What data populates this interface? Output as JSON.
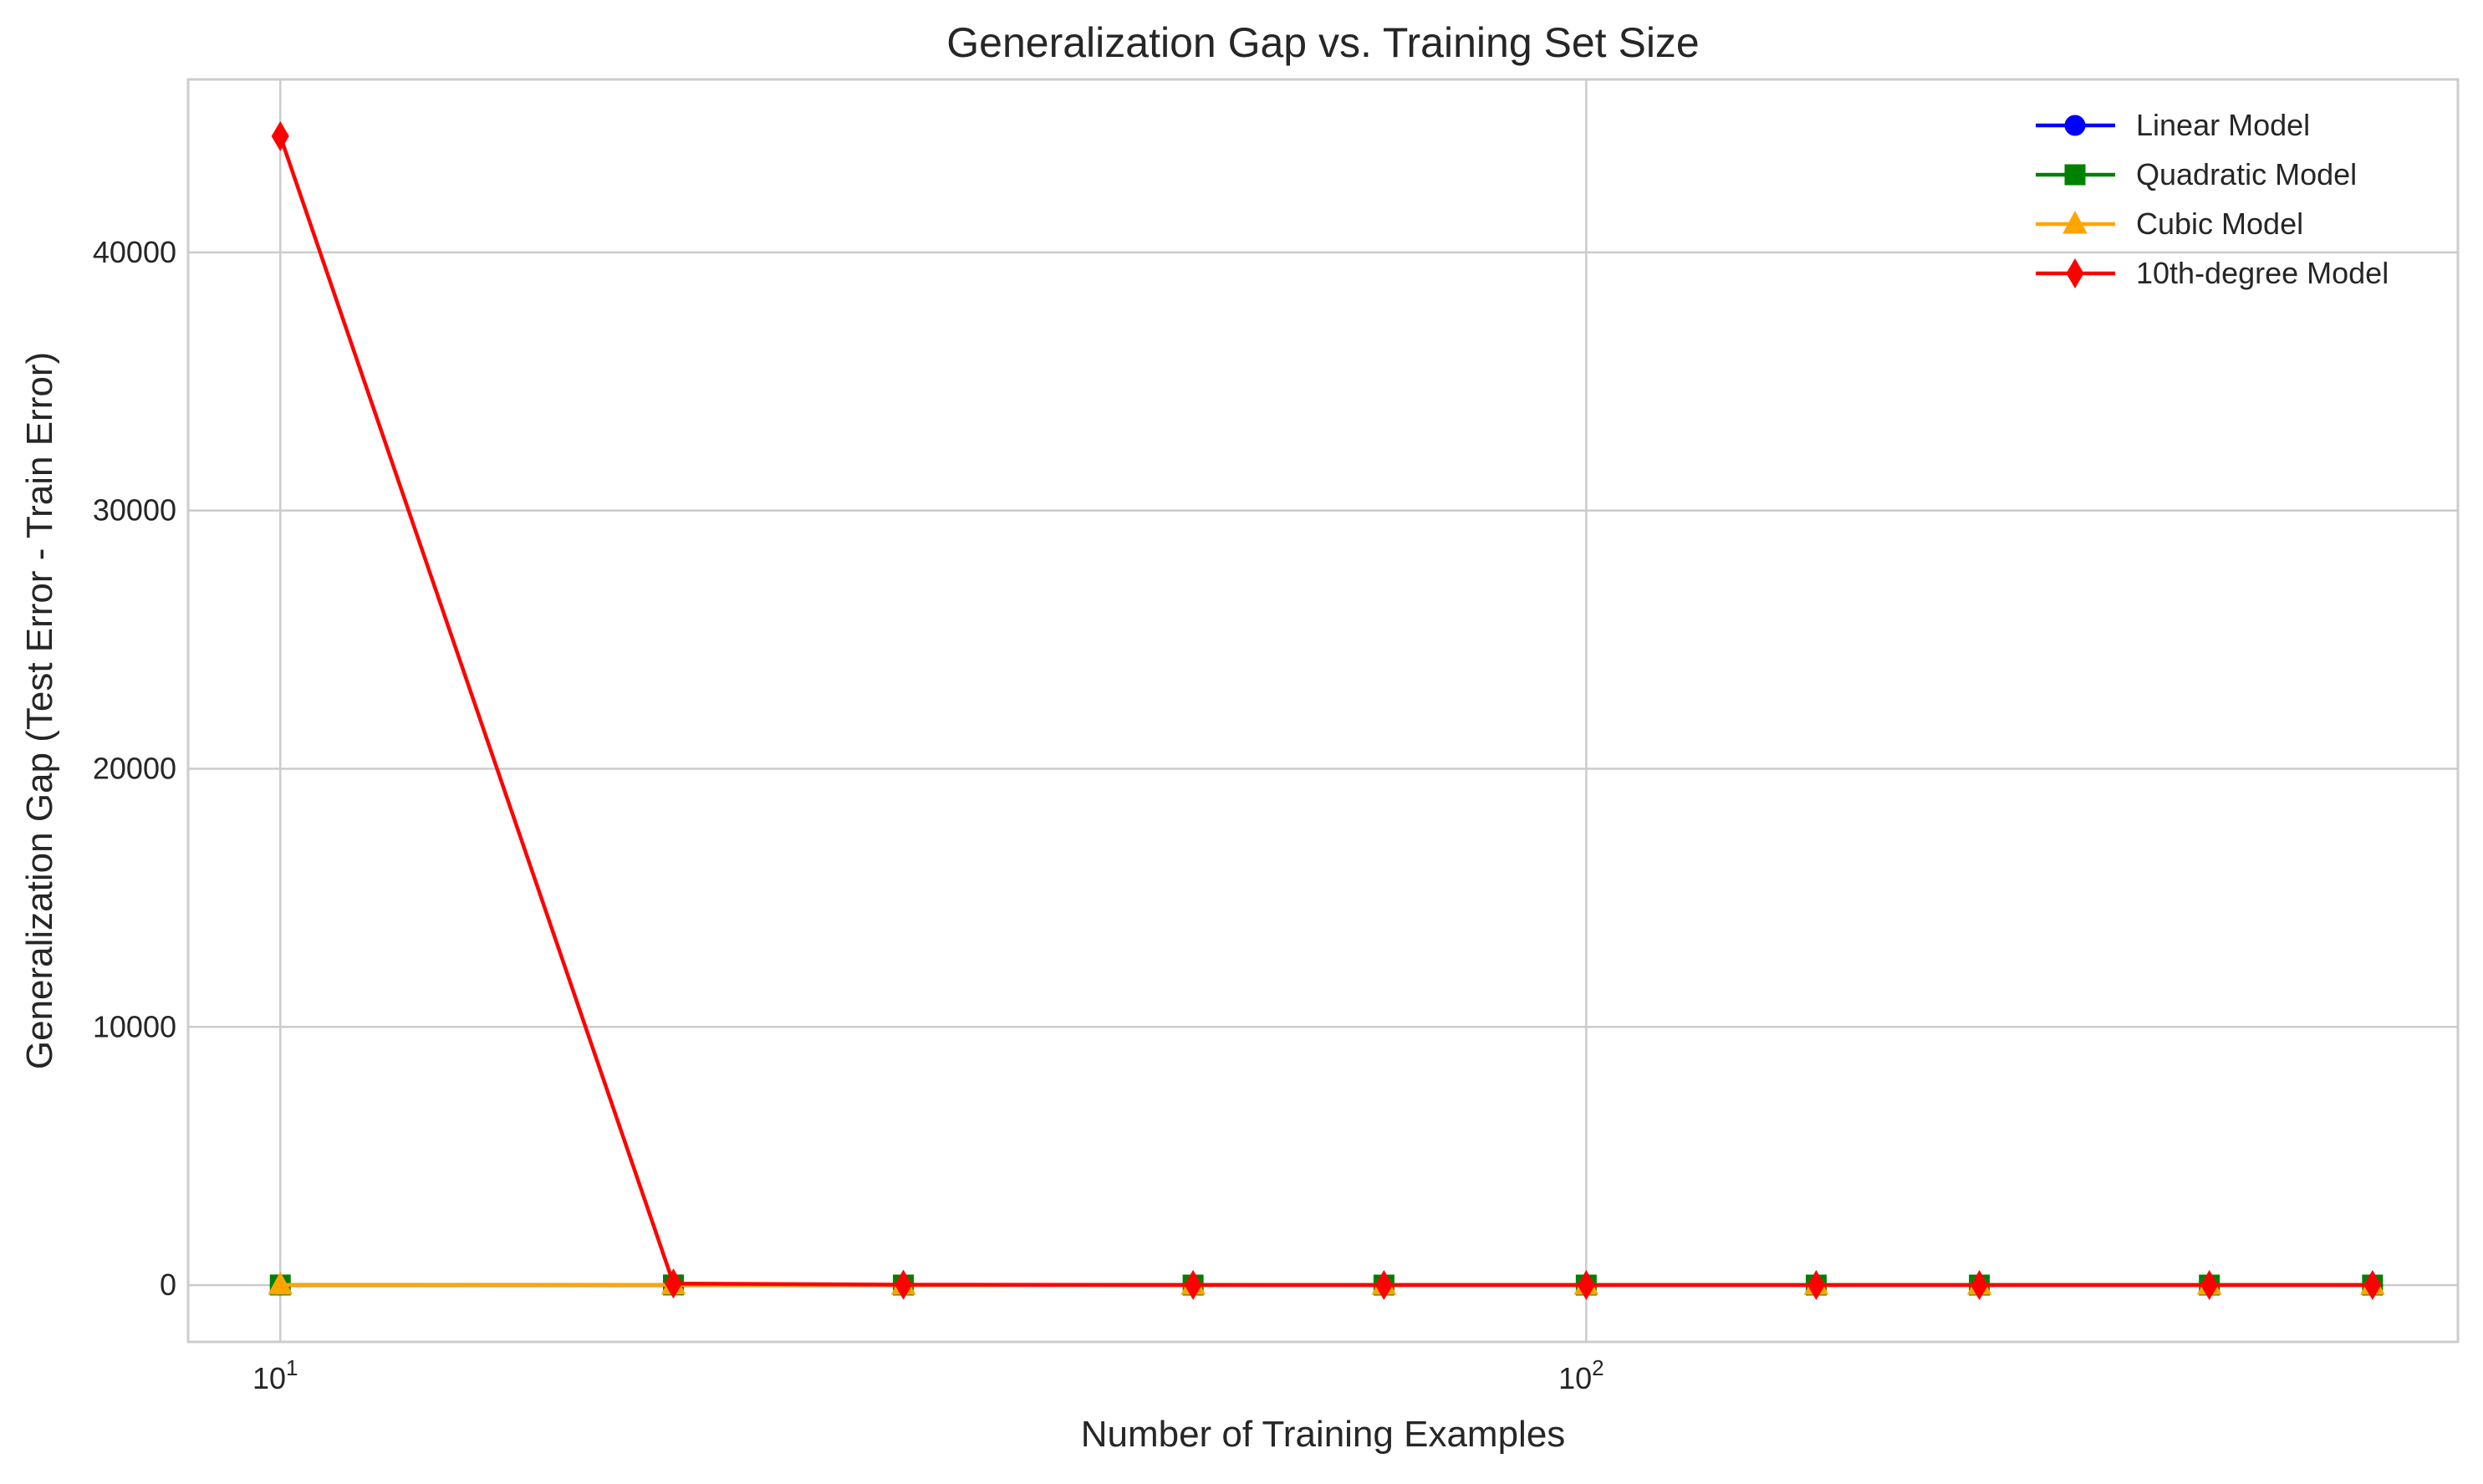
{
  "chart_data": {
    "type": "line",
    "title": "Generalization Gap vs. Training Set Size",
    "xlabel": "Number of Training Examples",
    "ylabel": "Generalization Gap (Test Error - Train Error)",
    "xscale": "log",
    "xlim": [
      8.5,
      465
    ],
    "ylim": [
      -2200,
      46700
    ],
    "x_ticks": [
      10,
      100
    ],
    "x_tick_labels": [
      [
        "10",
        "1"
      ],
      [
        "10",
        "2"
      ]
    ],
    "y_ticks": [
      0,
      10000,
      20000,
      30000,
      40000
    ],
    "y_tick_labels": [
      "0",
      "10000",
      "20000",
      "30000",
      "40000"
    ],
    "grid": true,
    "legend_position": "top-right",
    "x": [
      10,
      20,
      30,
      50,
      70,
      100,
      150,
      200,
      300,
      400
    ],
    "series": [
      {
        "name": "Linear Model",
        "color": "#0000ff",
        "marker": "circle",
        "values": [
          2,
          3,
          1,
          1,
          1,
          1,
          1,
          1,
          1,
          1
        ]
      },
      {
        "name": "Quadratic Model",
        "color": "#008000",
        "marker": "square",
        "values": [
          3,
          5,
          2,
          1,
          1,
          1,
          1,
          1,
          1,
          1
        ]
      },
      {
        "name": "Cubic Model",
        "color": "#ffa500",
        "marker": "triangle",
        "values": [
          5,
          10,
          3,
          2,
          1,
          1,
          1,
          1,
          1,
          1
        ]
      },
      {
        "name": "10th-degree Model",
        "color": "#ff0000",
        "marker": "diamond",
        "values": [
          44500,
          60,
          15,
          5,
          3,
          2,
          2,
          1,
          1,
          1
        ]
      }
    ]
  }
}
